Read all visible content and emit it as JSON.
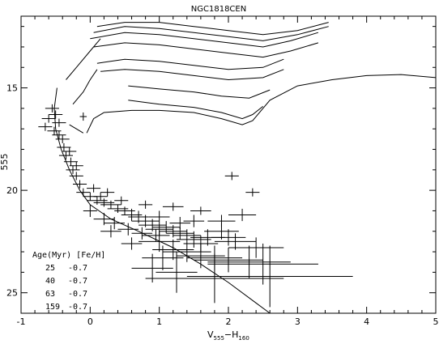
{
  "chart_data": {
    "type": "scatter",
    "title": "NGC1818CEN",
    "xlabel": "V",
    "ylabel": "555",
    "xlabel_sub1": "555",
    "xlabel_mid": "−H",
    "xlabel_sub2": "160",
    "xlim": [
      -1,
      5
    ],
    "ylim": [
      26,
      11.5
    ],
    "xticks": [
      "-1",
      "0",
      "1",
      "2",
      "3",
      "4",
      "5"
    ],
    "xtick_values": [
      -1,
      0,
      1,
      2,
      3,
      4,
      5
    ],
    "yticks": [
      "15",
      "20",
      "25"
    ],
    "ytick_values": [
      15,
      20,
      25
    ],
    "legend": {
      "header": "Age(Myr) [Fe/H]",
      "rows": [
        {
          "age": "25",
          "feh": "-0.7"
        },
        {
          "age": "40",
          "feh": "-0.7"
        },
        {
          "age": "63",
          "feh": "-0.7"
        },
        {
          "age": "159",
          "feh": "-0.7"
        }
      ]
    },
    "isochrones": [
      {
        "name": "long",
        "points": [
          [
            -0.05,
            17.2
          ],
          [
            0.05,
            16.5
          ],
          [
            0.2,
            16.2
          ],
          [
            0.6,
            16.1
          ],
          [
            1.0,
            16.1
          ],
          [
            1.5,
            16.2
          ],
          [
            1.9,
            16.5
          ],
          [
            2.2,
            16.8
          ],
          [
            2.35,
            16.6
          ],
          [
            2.6,
            15.6
          ],
          [
            3.0,
            14.9
          ],
          [
            3.5,
            14.6
          ],
          [
            4.0,
            14.4
          ],
          [
            4.5,
            14.35
          ],
          [
            5.0,
            14.5
          ]
        ]
      },
      {
        "name": "blue-loop-a",
        "points": [
          [
            0.55,
            15.6
          ],
          [
            1.0,
            15.8
          ],
          [
            1.5,
            15.95
          ],
          [
            1.9,
            16.2
          ],
          [
            2.2,
            16.5
          ],
          [
            2.35,
            16.3
          ],
          [
            2.5,
            15.9
          ]
        ]
      },
      {
        "name": "blue-loop-b",
        "points": [
          [
            0.55,
            14.9
          ],
          [
            1.0,
            15.05
          ],
          [
            1.5,
            15.2
          ],
          [
            1.9,
            15.4
          ],
          [
            2.3,
            15.5
          ],
          [
            2.6,
            15.1
          ]
        ]
      },
      {
        "name": "mid-1",
        "points": [
          [
            0.15,
            14.2
          ],
          [
            0.5,
            14.1
          ],
          [
            1.0,
            14.2
          ],
          [
            1.5,
            14.4
          ],
          [
            2.0,
            14.6
          ],
          [
            2.5,
            14.5
          ],
          [
            2.8,
            14.1
          ]
        ]
      },
      {
        "name": "mid-2",
        "points": [
          [
            0.1,
            13.8
          ],
          [
            0.5,
            13.6
          ],
          [
            1.0,
            13.7
          ],
          [
            1.5,
            13.9
          ],
          [
            2.0,
            14.1
          ],
          [
            2.5,
            14.0
          ],
          [
            2.8,
            13.6
          ]
        ]
      },
      {
        "name": "upper-1",
        "points": [
          [
            0.05,
            13.0
          ],
          [
            0.5,
            12.8
          ],
          [
            1.0,
            12.9
          ],
          [
            1.5,
            13.1
          ],
          [
            2.0,
            13.3
          ],
          [
            2.5,
            13.5
          ],
          [
            2.9,
            13.2
          ],
          [
            3.3,
            12.8
          ]
        ]
      },
      {
        "name": "upper-2",
        "points": [
          [
            0.0,
            12.6
          ],
          [
            0.5,
            12.3
          ],
          [
            1.0,
            12.4
          ],
          [
            1.5,
            12.6
          ],
          [
            2.0,
            12.8
          ],
          [
            2.5,
            13.0
          ],
          [
            2.9,
            12.7
          ],
          [
            3.3,
            12.3
          ]
        ]
      },
      {
        "name": "top-1",
        "points": [
          [
            0.05,
            12.3
          ],
          [
            0.5,
            12.0
          ],
          [
            1.0,
            12.1
          ],
          [
            1.5,
            12.3
          ],
          [
            2.0,
            12.5
          ],
          [
            2.5,
            12.7
          ],
          [
            3.0,
            12.4
          ],
          [
            3.45,
            12.0
          ]
        ]
      },
      {
        "name": "top-2",
        "points": [
          [
            0.1,
            12.0
          ],
          [
            0.5,
            11.8
          ],
          [
            1.0,
            11.8
          ],
          [
            1.5,
            12.0
          ],
          [
            2.0,
            12.2
          ],
          [
            2.5,
            12.4
          ],
          [
            3.0,
            12.2
          ],
          [
            3.45,
            11.8
          ]
        ]
      },
      {
        "name": "main-seq-1",
        "points": [
          [
            -0.48,
            15.0
          ],
          [
            -0.52,
            16.0
          ],
          [
            -0.5,
            17.0
          ],
          [
            -0.42,
            18.0
          ],
          [
            -0.3,
            19.0
          ],
          [
            -0.15,
            20.0
          ],
          [
            0.0,
            20.7
          ],
          [
            0.3,
            21.4
          ],
          [
            0.7,
            22.0
          ],
          [
            1.2,
            22.8
          ],
          [
            1.6,
            23.6
          ],
          [
            2.0,
            24.5
          ],
          [
            2.4,
            25.5
          ],
          [
            2.6,
            26.0
          ]
        ]
      },
      {
        "name": "main-seq-2",
        "points": [
          [
            -0.35,
            14.6
          ],
          [
            -0.2,
            14.0
          ],
          [
            0.0,
            13.2
          ],
          [
            0.15,
            12.6
          ]
        ]
      },
      {
        "name": "main-seq-3",
        "points": [
          [
            -0.25,
            15.8
          ],
          [
            -0.1,
            15.2
          ],
          [
            0.0,
            14.6
          ],
          [
            0.1,
            14.1
          ]
        ]
      },
      {
        "name": "main-seq-4",
        "points": [
          [
            -0.1,
            17.2
          ],
          [
            -0.2,
            17.0
          ],
          [
            -0.3,
            16.8
          ]
        ]
      }
    ],
    "points": [
      [
        -0.55,
        16.0,
        0.1,
        0.2
      ],
      [
        -0.5,
        16.3,
        0.1,
        0.2
      ],
      [
        -0.45,
        16.7,
        0.1,
        0.2
      ],
      [
        -0.52,
        17.1,
        0.1,
        0.2
      ],
      [
        -0.4,
        17.5,
        0.1,
        0.2
      ],
      [
        -0.38,
        17.9,
        0.1,
        0.2
      ],
      [
        -0.35,
        18.3,
        0.1,
        0.2
      ],
      [
        -0.28,
        18.6,
        0.1,
        0.2
      ],
      [
        -0.25,
        19.0,
        0.1,
        0.2
      ],
      [
        -0.2,
        19.3,
        0.1,
        0.2
      ],
      [
        -0.15,
        19.7,
        0.1,
        0.2
      ],
      [
        -0.1,
        20.1,
        0.1,
        0.2
      ],
      [
        0.0,
        20.3,
        0.1,
        0.2
      ],
      [
        0.1,
        20.5,
        0.15,
        0.2
      ],
      [
        0.2,
        20.6,
        0.15,
        0.2
      ],
      [
        0.3,
        20.7,
        0.15,
        0.2
      ],
      [
        0.4,
        20.9,
        0.15,
        0.2
      ],
      [
        0.5,
        21.0,
        0.15,
        0.2
      ],
      [
        0.6,
        21.2,
        0.15,
        0.3
      ],
      [
        0.7,
        21.3,
        0.15,
        0.3
      ],
      [
        0.8,
        21.5,
        0.2,
        0.3
      ],
      [
        0.9,
        21.7,
        0.2,
        0.3
      ],
      [
        1.0,
        21.9,
        0.2,
        0.3
      ],
      [
        1.1,
        21.8,
        0.2,
        0.3
      ],
      [
        1.2,
        22.0,
        0.2,
        0.3
      ],
      [
        1.3,
        22.1,
        0.2,
        0.3
      ],
      [
        1.4,
        22.2,
        0.2,
        0.3
      ],
      [
        1.5,
        22.4,
        0.25,
        0.4
      ],
      [
        1.6,
        22.6,
        0.25,
        0.4
      ],
      [
        1.7,
        22.3,
        0.25,
        0.4
      ],
      [
        1.9,
        22.0,
        0.25,
        0.4
      ],
      [
        2.0,
        22.3,
        0.25,
        0.4
      ],
      [
        2.1,
        22.5,
        0.3,
        0.4
      ],
      [
        1.0,
        22.5,
        0.3,
        0.5
      ],
      [
        1.2,
        22.9,
        0.3,
        0.5
      ],
      [
        1.4,
        23.0,
        0.35,
        0.5
      ],
      [
        1.6,
        23.2,
        0.35,
        0.6
      ],
      [
        1.8,
        23.3,
        0.4,
        0.6
      ],
      [
        2.0,
        23.4,
        0.5,
        0.6
      ],
      [
        2.3,
        23.5,
        0.6,
        0.8
      ],
      [
        2.5,
        23.6,
        0.8,
        1.0
      ],
      [
        1.25,
        24.0,
        0.3,
        1.0
      ],
      [
        1.8,
        24.3,
        1.0,
        1.2
      ],
      [
        2.6,
        24.2,
        1.2,
        1.5
      ],
      [
        0.6,
        22.6,
        0.15,
        0.3
      ],
      [
        0.3,
        22.0,
        0.15,
        0.3
      ],
      [
        0.2,
        21.4,
        0.15,
        0.3
      ],
      [
        0.0,
        21.0,
        0.1,
        0.3
      ],
      [
        0.8,
        20.7,
        0.1,
        0.2
      ],
      [
        1.2,
        20.8,
        0.15,
        0.2
      ],
      [
        1.6,
        21.0,
        0.15,
        0.2
      ],
      [
        1.5,
        21.5,
        0.15,
        0.3
      ],
      [
        1.9,
        21.5,
        0.2,
        0.3
      ],
      [
        2.2,
        21.2,
        0.2,
        0.3
      ],
      [
        2.35,
        20.1,
        0.1,
        0.2
      ],
      [
        2.05,
        19.3,
        0.1,
        0.2
      ],
      [
        -0.6,
        16.5,
        0.1,
        0.2
      ],
      [
        -0.65,
        16.9,
        0.1,
        0.2
      ],
      [
        -0.45,
        17.3,
        0.1,
        0.2
      ],
      [
        -0.3,
        18.1,
        0.1,
        0.2
      ],
      [
        -0.1,
        16.4,
        0.05,
        0.2
      ],
      [
        -0.2,
        18.8,
        0.1,
        0.2
      ],
      [
        0.05,
        19.9,
        0.1,
        0.2
      ],
      [
        0.15,
        20.3,
        0.1,
        0.2
      ],
      [
        0.25,
        20.1,
        0.1,
        0.2
      ],
      [
        0.45,
        20.5,
        0.1,
        0.2
      ],
      [
        0.35,
        21.6,
        0.15,
        0.3
      ],
      [
        0.55,
        21.9,
        0.15,
        0.3
      ],
      [
        0.75,
        22.1,
        0.15,
        0.3
      ],
      [
        0.95,
        22.2,
        0.2,
        0.3
      ],
      [
        1.05,
        23.3,
        0.3,
        0.6
      ],
      [
        0.9,
        23.8,
        0.3,
        0.7
      ],
      [
        2.4,
        22.8,
        0.4,
        0.5
      ],
      [
        1.3,
        21.6,
        0.15,
        0.3
      ],
      [
        1.0,
        21.3,
        0.15,
        0.3
      ]
    ]
  }
}
